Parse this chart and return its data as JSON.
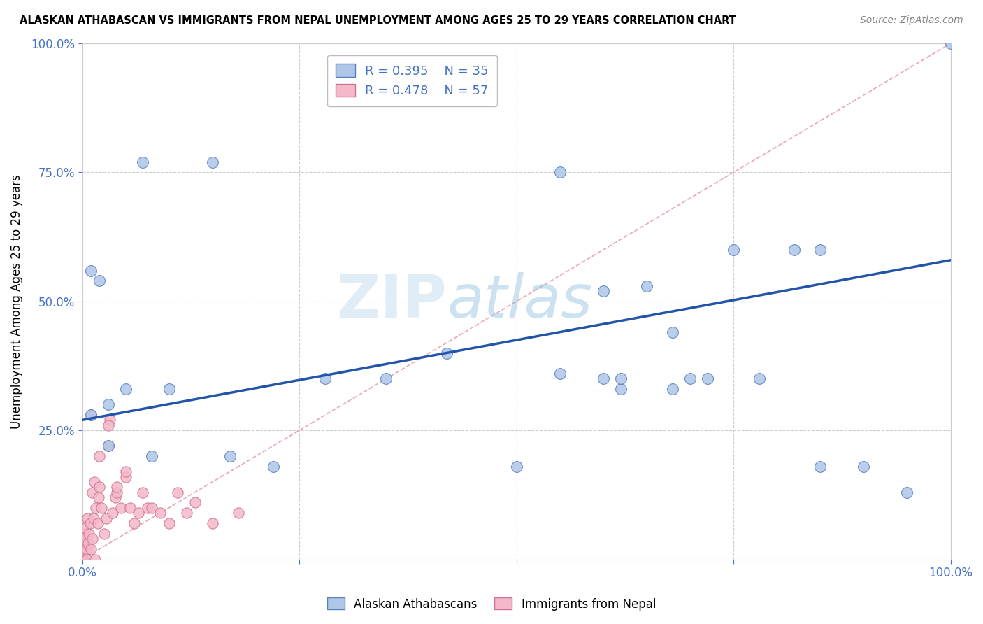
{
  "title": "ALASKAN ATHABASCAN VS IMMIGRANTS FROM NEPAL UNEMPLOYMENT AMONG AGES 25 TO 29 YEARS CORRELATION CHART",
  "source": "Source: ZipAtlas.com",
  "ylabel": "Unemployment Among Ages 25 to 29 years",
  "xlim": [
    0,
    1.0
  ],
  "ylim": [
    0,
    1.0
  ],
  "R_blue": 0.395,
  "N_blue": 35,
  "R_pink": 0.478,
  "N_pink": 57,
  "blue_color": "#aec6e8",
  "pink_color": "#f4b8c8",
  "blue_line_color": "#2255aa",
  "ref_line_color": "#e08090",
  "blue_scatter_x": [
    0.01,
    0.02,
    0.03,
    0.05,
    0.07,
    0.08,
    0.1,
    0.15,
    0.17,
    0.22,
    0.28,
    0.35,
    0.42,
    0.5,
    0.55,
    0.6,
    0.62,
    0.65,
    0.68,
    0.72,
    0.75,
    0.78,
    0.82,
    0.85,
    0.9,
    0.95,
    1.0,
    0.01,
    0.03,
    0.55,
    0.6,
    0.62,
    0.68,
    0.7,
    0.85
  ],
  "blue_scatter_y": [
    0.56,
    0.54,
    0.3,
    0.33,
    0.77,
    0.2,
    0.33,
    0.77,
    0.2,
    0.18,
    0.35,
    0.35,
    0.4,
    0.18,
    0.75,
    0.35,
    0.33,
    0.53,
    0.44,
    0.35,
    0.6,
    0.35,
    0.6,
    0.6,
    0.18,
    0.13,
    1.0,
    0.28,
    0.22,
    0.36,
    0.52,
    0.35,
    0.33,
    0.35,
    0.18
  ],
  "pink_scatter_x": [
    0.0,
    0.0,
    0.0,
    0.0,
    0.0,
    0.0,
    0.0,
    0.0,
    0.0,
    0.0,
    0.002,
    0.003,
    0.004,
    0.005,
    0.005,
    0.006,
    0.007,
    0.008,
    0.009,
    0.01,
    0.01,
    0.012,
    0.012,
    0.013,
    0.014,
    0.015,
    0.016,
    0.018,
    0.019,
    0.02,
    0.022,
    0.025,
    0.028,
    0.03,
    0.032,
    0.035,
    0.038,
    0.04,
    0.045,
    0.05,
    0.055,
    0.06,
    0.065,
    0.07,
    0.075,
    0.08,
    0.09,
    0.1,
    0.11,
    0.12,
    0.13,
    0.15,
    0.18,
    0.02,
    0.03,
    0.04,
    0.05
  ],
  "pink_scatter_y": [
    0.0,
    0.0,
    0.0,
    0.0,
    0.0,
    0.0,
    0.0,
    0.01,
    0.02,
    0.03,
    0.04,
    0.05,
    0.06,
    0.0,
    0.02,
    0.08,
    0.03,
    0.05,
    0.07,
    0.02,
    0.28,
    0.04,
    0.13,
    0.08,
    0.15,
    0.0,
    0.1,
    0.07,
    0.12,
    0.14,
    0.1,
    0.05,
    0.08,
    0.22,
    0.27,
    0.09,
    0.12,
    0.13,
    0.1,
    0.16,
    0.1,
    0.07,
    0.09,
    0.13,
    0.1,
    0.1,
    0.09,
    0.07,
    0.13,
    0.09,
    0.11,
    0.07,
    0.09,
    0.2,
    0.26,
    0.14,
    0.17
  ],
  "blue_line_x0": 0.0,
  "blue_line_y0": 0.27,
  "blue_line_x1": 1.0,
  "blue_line_y1": 0.58,
  "watermark_zip": "ZIP",
  "watermark_atlas": "atlas"
}
